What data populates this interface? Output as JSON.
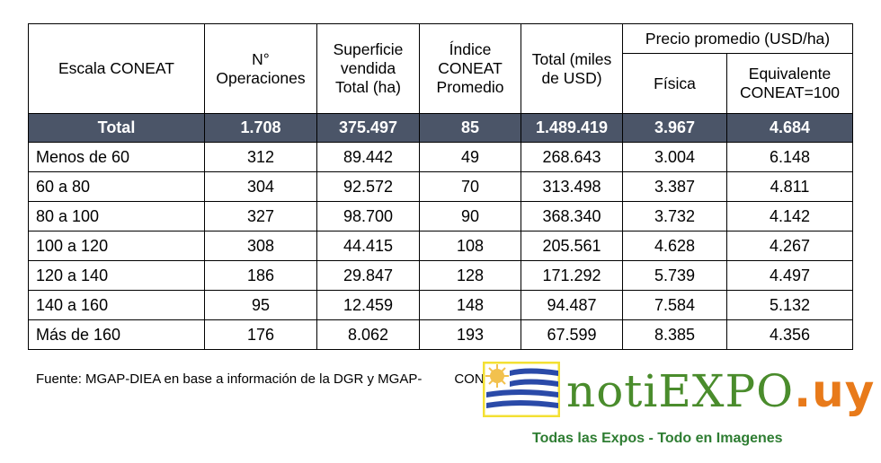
{
  "headers": {
    "escala": "Escala CONEAT",
    "operaciones": "N° Operaciones",
    "superficie": "Superficie vendida Total (ha)",
    "indice": "Índice CONEAT Promedio",
    "total": "Total (miles de USD)",
    "precio": "Precio promedio (USD/ha)",
    "fisica": "Física",
    "equivalente": "Equivalente CONEAT=100"
  },
  "total_row": {
    "label": "Total",
    "operaciones": "1.708",
    "superficie": "375.497",
    "indice": "85",
    "total": "1.489.419",
    "fisica": "3.967",
    "equivalente": "4.684"
  },
  "rows": [
    {
      "escala": "Menos de 60",
      "operaciones": "312",
      "superficie": "89.442",
      "indice": "49",
      "total": "268.643",
      "fisica": "3.004",
      "equivalente": "6.148"
    },
    {
      "escala": "60 a 80",
      "operaciones": "304",
      "superficie": "92.572",
      "indice": "70",
      "total": "313.498",
      "fisica": "3.387",
      "equivalente": "4.811"
    },
    {
      "escala": "80 a 100",
      "operaciones": "327",
      "superficie": "98.700",
      "indice": "90",
      "total": "368.340",
      "fisica": "3.732",
      "equivalente": "4.142"
    },
    {
      "escala": "100 a 120",
      "operaciones": "308",
      "superficie": "44.415",
      "indice": "108",
      "total": "205.561",
      "fisica": "4.628",
      "equivalente": "4.267"
    },
    {
      "escala": "120 a 140",
      "operaciones": "186",
      "superficie": "29.847",
      "indice": "128",
      "total": "171.292",
      "fisica": "5.739",
      "equivalente": "4.497"
    },
    {
      "escala": "140 a 160",
      "operaciones": "95",
      "superficie": "12.459",
      "indice": "148",
      "total": "94.487",
      "fisica": "7.584",
      "equivalente": "5.132"
    },
    {
      "escala": "Más de 160",
      "operaciones": "176",
      "superficie": "8.062",
      "indice": "193",
      "total": "67.599",
      "fisica": "8.385",
      "equivalente": "4.356"
    }
  ],
  "source": "Fuente: MGAP-DIEA en base a información de la DGR y MGAP-",
  "source_tail": "CONEAT",
  "watermark": {
    "brand_main": "notiEXPO",
    "brand_suffix": ".uy",
    "tagline": "Todas las Expos - Todo en Imagenes",
    "flag_stripe_color": "#2a4aa8",
    "sun_color": "#f2c14e",
    "frame_color": "#f3e033"
  }
}
